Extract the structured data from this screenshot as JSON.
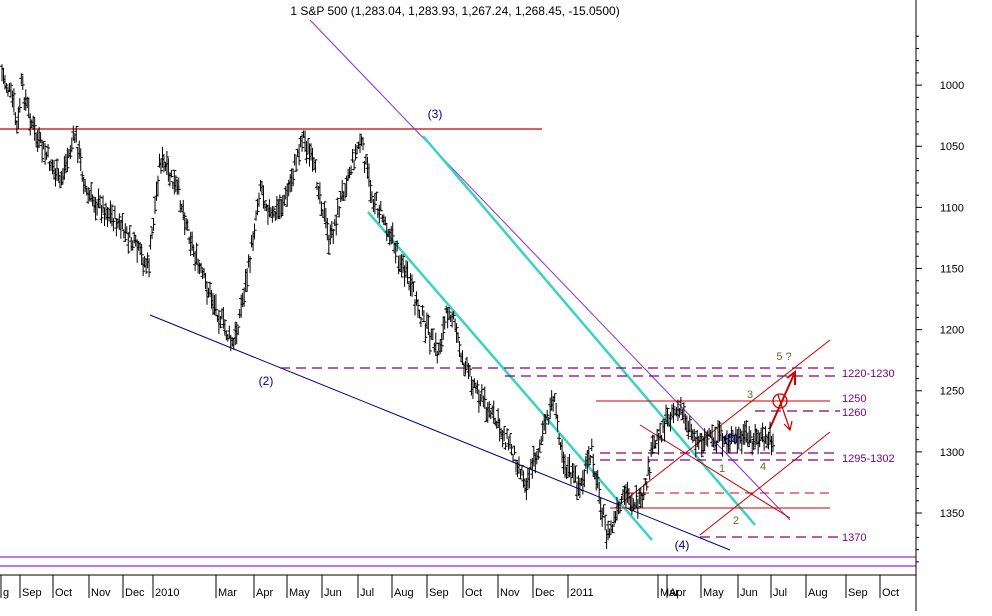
{
  "chart_data": {
    "type": "ohlc",
    "title": "1 S&P 500 (1,283.04, 1,283.93, 1,267.24, 1,268.45, -15.0500)",
    "y_axis": {
      "position": "right",
      "inverted": true,
      "range": [
        950,
        1395
      ],
      "ticks": [
        1000,
        1050,
        1100,
        1150,
        1200,
        1250,
        1300,
        1350
      ]
    },
    "x_axis": {
      "tick_labels": [
        "g",
        "Sep",
        "Oct",
        "Nov",
        "Dec",
        "2010",
        "Mar",
        "Apr",
        "May",
        "Jun",
        "Jul",
        "Aug",
        "Sep",
        "Oct",
        "Nov",
        "Dec",
        "2011",
        "Mar",
        "Apr",
        "May",
        "Jun",
        "Jul",
        "Aug",
        "Sep",
        "Oct"
      ]
    },
    "price_anchors": [
      {
        "t": 0.0,
        "v": 990
      },
      {
        "t": 0.015,
        "v": 1015
      },
      {
        "t": 0.02,
        "v": 1040
      },
      {
        "t": 0.025,
        "v": 1000
      },
      {
        "t": 0.045,
        "v": 1045
      },
      {
        "t": 0.06,
        "v": 1060
      },
      {
        "t": 0.075,
        "v": 1080
      },
      {
        "t": 0.095,
        "v": 1040
      },
      {
        "t": 0.11,
        "v": 1090
      },
      {
        "t": 0.14,
        "v": 1105
      },
      {
        "t": 0.17,
        "v": 1130
      },
      {
        "t": 0.19,
        "v": 1150
      },
      {
        "t": 0.205,
        "v": 1060
      },
      {
        "t": 0.23,
        "v": 1090
      },
      {
        "t": 0.255,
        "v": 1150
      },
      {
        "t": 0.28,
        "v": 1185
      },
      {
        "t": 0.3,
        "v": 1215
      },
      {
        "t": 0.32,
        "v": 1150
      },
      {
        "t": 0.335,
        "v": 1080
      },
      {
        "t": 0.35,
        "v": 1110
      },
      {
        "t": 0.37,
        "v": 1090
      },
      {
        "t": 0.39,
        "v": 1040
      },
      {
        "t": 0.41,
        "v": 1080
      },
      {
        "t": 0.425,
        "v": 1130
      },
      {
        "t": 0.445,
        "v": 1080
      },
      {
        "t": 0.465,
        "v": 1045
      },
      {
        "t": 0.48,
        "v": 1090
      },
      {
        "t": 0.5,
        "v": 1115
      },
      {
        "t": 0.52,
        "v": 1150
      },
      {
        "t": 0.545,
        "v": 1190
      },
      {
        "t": 0.565,
        "v": 1220
      },
      {
        "t": 0.58,
        "v": 1180
      },
      {
        "t": 0.6,
        "v": 1230
      },
      {
        "t": 0.63,
        "v": 1265
      },
      {
        "t": 0.66,
        "v": 1295
      },
      {
        "t": 0.68,
        "v": 1325
      },
      {
        "t": 0.7,
        "v": 1290
      },
      {
        "t": 0.715,
        "v": 1255
      },
      {
        "t": 0.73,
        "v": 1310
      },
      {
        "t": 0.75,
        "v": 1330
      },
      {
        "t": 0.765,
        "v": 1300
      },
      {
        "t": 0.785,
        "v": 1370
      },
      {
        "t": 0.81,
        "v": 1335
      },
      {
        "t": 0.83,
        "v": 1345
      },
      {
        "t": 0.845,
        "v": 1295
      },
      {
        "t": 0.87,
        "v": 1265
      },
      {
        "t": 0.885,
        "v": 1270
      },
      {
        "t": 0.9,
        "v": 1290
      }
    ],
    "annotations": {
      "wave_labels": [
        "(2)",
        "(3)",
        "(4)",
        "(5)",
        "1",
        "2",
        "3",
        "4",
        "5 ?"
      ],
      "level_labels": [
        "1220-1230",
        "1250",
        "1260",
        "1295-1302",
        "1370"
      ]
    }
  },
  "colors": {
    "price": "#000000",
    "resistance": "#cc0000",
    "support_line": "#00008b",
    "channel": "#3ad3c0",
    "violet": "#8a2be2",
    "dash_level": "#800080",
    "wave_label": "#00008b",
    "sub_wave_label": "#6b6b20"
  }
}
